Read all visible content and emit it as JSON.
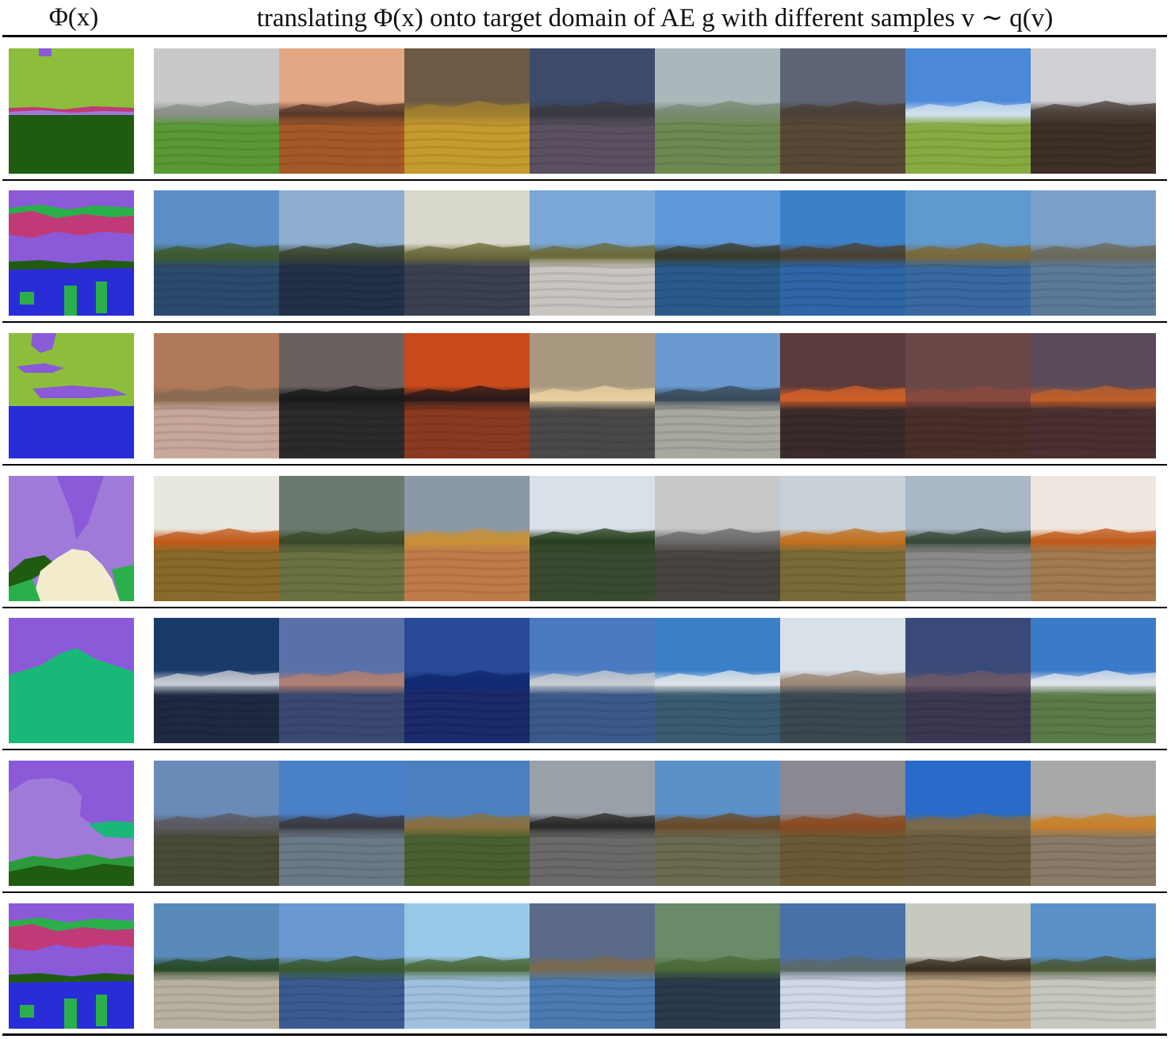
{
  "header": {
    "left_label": "Φ(x)",
    "right_label": "translating Φ(x) onto target domain of AE g with different samples v ∼ q(v)"
  },
  "colors": {
    "grass": "#8cbd3b",
    "sky_purple": "#8a5ad8",
    "mountain_light_purple": "#a07ad8",
    "tree_dark_green": "#1f5c12",
    "river_blue": "#2a2cd8",
    "ground_green": "#2ab04a",
    "rock_cream": "#f2eccc",
    "hill_magenta": "#c03a78",
    "mountain_teal": "#1ab878",
    "bush_green": "#2c9a3a"
  },
  "rows": [
    {
      "segmentation": "grass-sky",
      "samples": [
        {
          "sky": "#c8c9cb",
          "hor": "#8a8f88",
          "gnd": "#5a9a35"
        },
        {
          "sky": "#e2a886",
          "hor": "#5b3a2a",
          "gnd": "#a45a28"
        },
        {
          "sky": "#6d5a44",
          "hor": "#a08030",
          "gnd": "#c59a2e"
        },
        {
          "sky": "#3e4a6a",
          "hor": "#3a3a40",
          "gnd": "#5a5060"
        },
        {
          "sky": "#aab8bc",
          "hor": "#7a8a70",
          "gnd": "#6c8a50"
        },
        {
          "sky": "#5e6475",
          "hor": "#4a4038",
          "gnd": "#5a4836"
        },
        {
          "sky": "#4c88d8",
          "hor": "#cfe0ee",
          "gnd": "#88aa40"
        },
        {
          "sky": "#cfcfd4",
          "hor": "#4a4038",
          "gnd": "#3e3028"
        }
      ]
    },
    {
      "segmentation": "river-trees",
      "samples": [
        {
          "sky": "#5c8ec8",
          "hor": "#3e5a2e",
          "gnd": "#2c4a6c"
        },
        {
          "sky": "#8eaed0",
          "hor": "#3a4530",
          "gnd": "#223048"
        },
        {
          "sky": "#d8d8cc",
          "hor": "#6a6a3a",
          "gnd": "#3a4050"
        },
        {
          "sky": "#7aa8d8",
          "hor": "#6a6a3a",
          "gnd": "#c8c4c0"
        },
        {
          "sky": "#5e98d8",
          "hor": "#3a3a2a",
          "gnd": "#2a5a8a"
        },
        {
          "sky": "#3c80c8",
          "hor": "#4a4030",
          "gnd": "#2e66a8"
        },
        {
          "sky": "#6098d0",
          "hor": "#7a6a3a",
          "gnd": "#3a68a0"
        },
        {
          "sky": "#7aa0c8",
          "hor": "#6a6a5a",
          "gnd": "#5a7a98"
        }
      ]
    },
    {
      "segmentation": "grass-sky-water",
      "samples": [
        {
          "sky": "#b07a5a",
          "hor": "#8a6a50",
          "gnd": "#c8a89a"
        },
        {
          "sky": "#6a6060",
          "hor": "#1a1a1a",
          "gnd": "#2a2a2a"
        },
        {
          "sky": "#c84a1a",
          "hor": "#2a1a1a",
          "gnd": "#8a3a20"
        },
        {
          "sky": "#a89880",
          "hor": "#e8d0a0",
          "gnd": "#4a4848"
        },
        {
          "sky": "#6a9ad0",
          "hor": "#3a4a5a",
          "gnd": "#a8a8a0"
        },
        {
          "sky": "#5a3a3a",
          "hor": "#d0602a",
          "gnd": "#3a2a2a"
        },
        {
          "sky": "#6a4848",
          "hor": "#8a4a40",
          "gnd": "#4a2e2a"
        },
        {
          "sky": "#5a4a5a",
          "hor": "#c0602a",
          "gnd": "#4a3030"
        }
      ]
    },
    {
      "segmentation": "sky-rock-trees",
      "samples": [
        {
          "sky": "#e8e8e0",
          "hor": "#c05a1a",
          "gnd": "#8a6a2a"
        },
        {
          "sky": "#6a7a70",
          "hor": "#3a4a2a",
          "gnd": "#6a7040"
        },
        {
          "sky": "#8a98a8",
          "hor": "#c8903a",
          "gnd": "#c07a4a"
        },
        {
          "sky": "#d8e0e8",
          "hor": "#2a4020",
          "gnd": "#3a4a30"
        },
        {
          "sky": "#c8c8c8",
          "hor": "#6a6a68",
          "gnd": "#4a4440"
        },
        {
          "sky": "#c8d0d8",
          "hor": "#c07020",
          "gnd": "#7a6a38"
        },
        {
          "sky": "#aab8c8",
          "hor": "#3a4a3a",
          "gnd": "#8a8a88"
        },
        {
          "sky": "#f0e8e0",
          "hor": "#c05a1a",
          "gnd": "#a07a50"
        }
      ]
    },
    {
      "segmentation": "mountain",
      "samples": [
        {
          "sky": "#1a3a6a",
          "hor": "#c8ccd4",
          "gnd": "#1e2a40"
        },
        {
          "sky": "#5a70a8",
          "hor": "#b08070",
          "gnd": "#3a4870"
        },
        {
          "sky": "#2a4a98",
          "hor": "#102a70",
          "gnd": "#1a2a6a"
        },
        {
          "sky": "#4a7ac0",
          "hor": "#c8ccd0",
          "gnd": "#3a5888"
        },
        {
          "sky": "#3a80c8",
          "hor": "#e0e4e8",
          "gnd": "#3a5a70"
        },
        {
          "sky": "#d8e0e8",
          "hor": "#9a8878",
          "gnd": "#3a4850"
        },
        {
          "sky": "#3a4a78",
          "hor": "#6a5a68",
          "gnd": "#3a3850"
        },
        {
          "sky": "#3a7ac8",
          "hor": "#e0e4ec",
          "gnd": "#5a7a48"
        }
      ]
    },
    {
      "segmentation": "mountain-grass",
      "samples": [
        {
          "sky": "#6a8ab8",
          "hor": "#5a5a60",
          "gnd": "#4a4a38"
        },
        {
          "sky": "#4a80c8",
          "hor": "#3a3a40",
          "gnd": "#6a7a88"
        },
        {
          "sky": "#4a80c0",
          "hor": "#8a7040",
          "gnd": "#4a6030"
        },
        {
          "sky": "#9aa0a8",
          "hor": "#2a2a2a",
          "gnd": "#6a6a68"
        },
        {
          "sky": "#5a90c8",
          "hor": "#6a4a2a",
          "gnd": "#6a6a50"
        },
        {
          "sky": "#8a8890",
          "hor": "#8a4a20",
          "gnd": "#6a5a38"
        },
        {
          "sky": "#2a6ac8",
          "hor": "#7a6a4a",
          "gnd": "#6a5a40"
        },
        {
          "sky": "#a8a8a8",
          "hor": "#c8802a",
          "gnd": "#8a7a68"
        }
      ]
    },
    {
      "segmentation": "river-trees",
      "samples": [
        {
          "sky": "#5a8ab8",
          "hor": "#2a4a2a",
          "gnd": "#b8b0a0"
        },
        {
          "sky": "#6a98d0",
          "hor": "#3a5a30",
          "gnd": "#3a5a90"
        },
        {
          "sky": "#98c8e8",
          "hor": "#4a6a3a",
          "gnd": "#a0c0e0"
        },
        {
          "sky": "#5a6a88",
          "hor": "#7a6a50",
          "gnd": "#4a7ab0"
        },
        {
          "sky": "#6a8a68",
          "hor": "#4a6a3a",
          "gnd": "#2a3a4a"
        },
        {
          "sky": "#4a70a8",
          "hor": "#5a6a6a",
          "gnd": "#d0d8e8"
        },
        {
          "sky": "#c8c8c0",
          "hor": "#3a3020",
          "gnd": "#c0a888"
        },
        {
          "sky": "#5a90c8",
          "hor": "#4a5a3a",
          "gnd": "#c8c8c0"
        }
      ]
    }
  ]
}
